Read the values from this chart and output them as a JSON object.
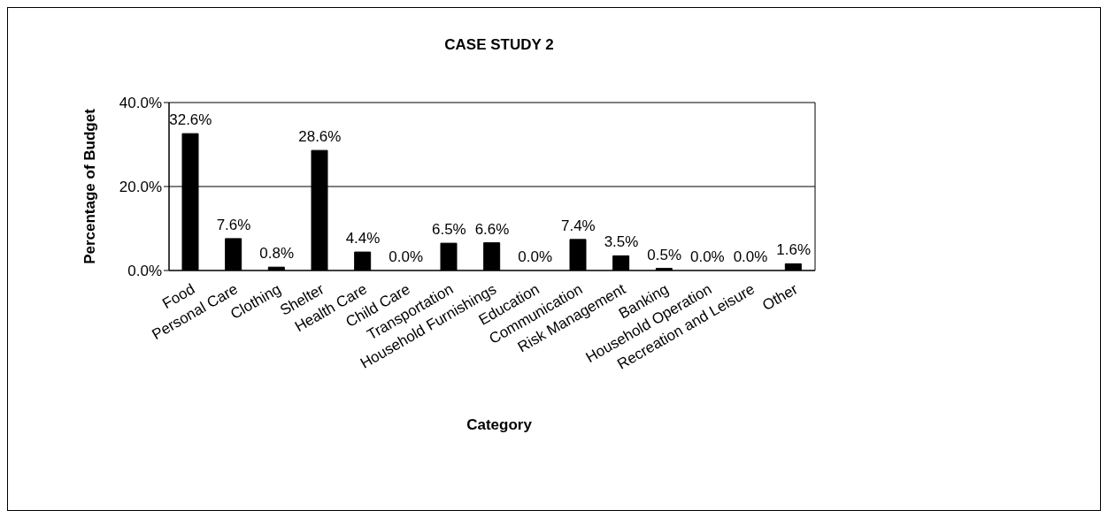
{
  "chart_data": {
    "type": "bar",
    "title": "CASE STUDY 2",
    "xlabel": "Category",
    "ylabel": "Percentage of Budget",
    "categories": [
      "Food",
      "Personal Care",
      "Clothing",
      "Shelter",
      "Health Care",
      "Child Care",
      "Transportation",
      "Household Furnishings",
      "Education",
      "Communication",
      "Risk Management",
      "Banking",
      "Household Operation",
      "Recreation and Leisure",
      "Other"
    ],
    "values": [
      32.6,
      7.6,
      0.8,
      28.6,
      4.4,
      0.0,
      6.5,
      6.6,
      0.0,
      7.4,
      3.5,
      0.5,
      0.0,
      0.0,
      1.6
    ],
    "value_labels": [
      "32.6%",
      "7.6%",
      "0.8%",
      "28.6%",
      "4.4%",
      "0.0%",
      "6.5%",
      "6.6%",
      "0.0%",
      "7.4%",
      "3.5%",
      "0.5%",
      "0.0%",
      "0.0%",
      "1.6%"
    ],
    "color": "#000000",
    "ylim": [
      0,
      40
    ],
    "yticks": [
      {
        "value": 0,
        "label": "0.0%"
      },
      {
        "value": 20,
        "label": "20.0%"
      },
      {
        "value": 40,
        "label": "40.0%"
      }
    ],
    "grid": "y"
  }
}
